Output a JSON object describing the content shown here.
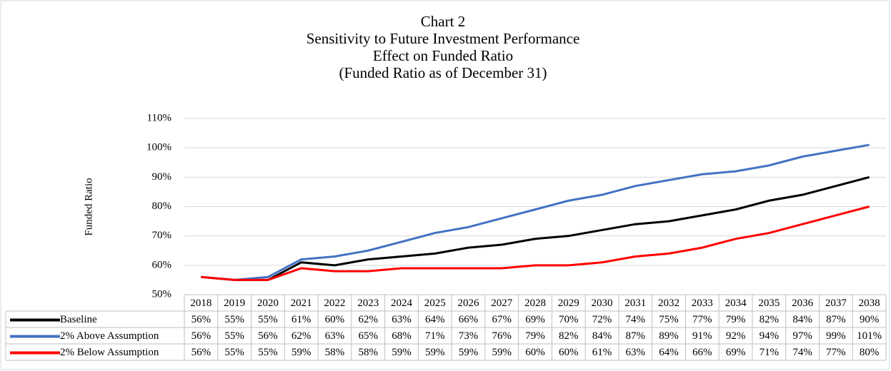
{
  "chart_data": {
    "type": "line",
    "title": [
      "Chart 2",
      "Sensitivity  to Future Investment Performance",
      "Effect on Funded Ratio",
      "(Funded Ratio as of December 31)"
    ],
    "y_label": "Funded Ratio",
    "categories": [
      "2018",
      "2019",
      "2020",
      "2021",
      "2022",
      "2023",
      "2024",
      "2025",
      "2026",
      "2027",
      "2028",
      "2029",
      "2030",
      "2031",
      "2032",
      "2033",
      "2034",
      "2035",
      "2036",
      "2037",
      "2038"
    ],
    "series": [
      {
        "name": "Baseline",
        "color": "#000000",
        "values": [
          56,
          55,
          55,
          61,
          60,
          62,
          63,
          64,
          66,
          67,
          69,
          70,
          72,
          74,
          75,
          77,
          79,
          82,
          84,
          87,
          90
        ],
        "value_labels": [
          "56%",
          "55%",
          "55%",
          "61%",
          "60%",
          "62%",
          "63%",
          "64%",
          "66%",
          "67%",
          "69%",
          "70%",
          "72%",
          "74%",
          "75%",
          "77%",
          "79%",
          "82%",
          "84%",
          "87%",
          "90%"
        ]
      },
      {
        "name": "2% Above Assumption",
        "color": "#4472c4",
        "values": [
          56,
          55,
          56,
          62,
          63,
          65,
          68,
          71,
          73,
          76,
          79,
          82,
          84,
          87,
          89,
          91,
          92,
          94,
          97,
          99,
          101
        ],
        "value_labels": [
          "56%",
          "55%",
          "56%",
          "62%",
          "63%",
          "65%",
          "68%",
          "71%",
          "73%",
          "76%",
          "79%",
          "82%",
          "84%",
          "87%",
          "89%",
          "91%",
          "92%",
          "94%",
          "97%",
          "99%",
          "101%"
        ]
      },
      {
        "name": "2% Below Assumption",
        "color": "#ff0000",
        "values": [
          56,
          55,
          55,
          59,
          58,
          58,
          59,
          59,
          59,
          59,
          60,
          60,
          61,
          63,
          64,
          66,
          69,
          71,
          74,
          77,
          80
        ],
        "value_labels": [
          "56%",
          "55%",
          "55%",
          "59%",
          "58%",
          "58%",
          "59%",
          "59%",
          "59%",
          "59%",
          "60%",
          "60%",
          "61%",
          "63%",
          "64%",
          "66%",
          "69%",
          "71%",
          "74%",
          "77%",
          "80%"
        ]
      }
    ],
    "ylim": [
      50,
      110
    ],
    "yticks": [
      {
        "value": 50,
        "label": "50%"
      },
      {
        "value": 60,
        "label": "60%"
      },
      {
        "value": 70,
        "label": "70%"
      },
      {
        "value": 80,
        "label": "80%"
      },
      {
        "value": 90,
        "label": "90%"
      },
      {
        "value": 100,
        "label": "100%"
      },
      {
        "value": 110,
        "label": "110%"
      }
    ],
    "grid": true
  }
}
